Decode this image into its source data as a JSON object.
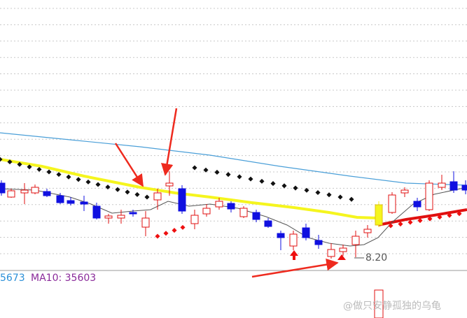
{
  "legend": {
    "ma5": "5673",
    "ma10": "MA10: 35603"
  },
  "annotations": {
    "low_label": "8.20"
  },
  "watermark": "@做只安静孤独的乌龟"
}
